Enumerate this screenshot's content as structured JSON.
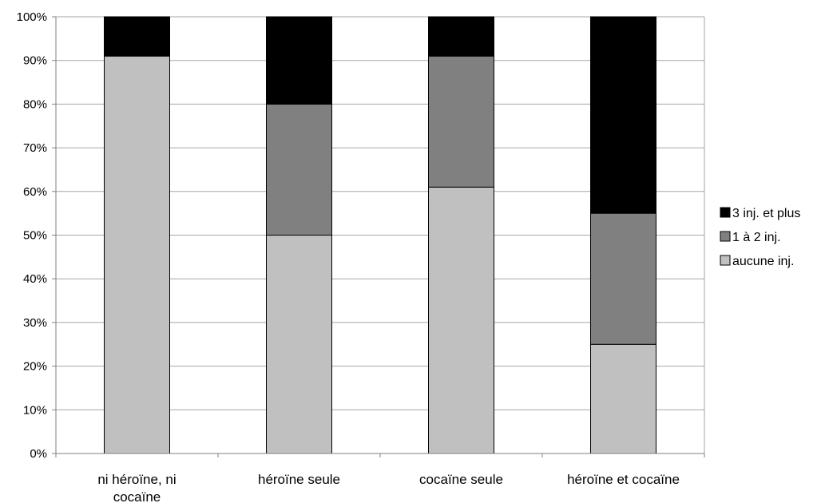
{
  "chart_data": {
    "type": "bar",
    "stacked": true,
    "categories": [
      "ni héroïne, ni cocaïne",
      "héroïne seule",
      "cocaïne seule",
      "héroïne et cocaïne"
    ],
    "category_lines": [
      [
        "ni héroïne, ni",
        "cocaïne"
      ],
      [
        "héroïne seule"
      ],
      [
        "cocaïne seule"
      ],
      [
        "héroïne et cocaïne"
      ]
    ],
    "series": [
      {
        "name": "aucune inj.",
        "values": [
          91,
          50,
          61,
          25
        ],
        "color": "#c0c0c0"
      },
      {
        "name": "1 à 2 inj.",
        "values": [
          0,
          30,
          30,
          30
        ],
        "color": "#808080"
      },
      {
        "name": "3 inj. et plus",
        "values": [
          9,
          20,
          9,
          45
        ],
        "color": "#000000"
      }
    ],
    "legend_order": [
      "3 inj. et plus",
      "1 à 2 inj.",
      "aucune inj."
    ],
    "legend_labels": [
      "3 inj. et plus",
      " 1 à 2 inj.",
      "aucune inj."
    ],
    "ylim": [
      0,
      100
    ],
    "yticks": [
      "0%",
      "10%",
      "20%",
      "30%",
      "40%",
      "50%",
      "60%",
      "70%",
      "80%",
      "90%",
      "100%"
    ],
    "legend_position": "right",
    "grid": true,
    "title": "",
    "xlabel": "",
    "ylabel": ""
  }
}
